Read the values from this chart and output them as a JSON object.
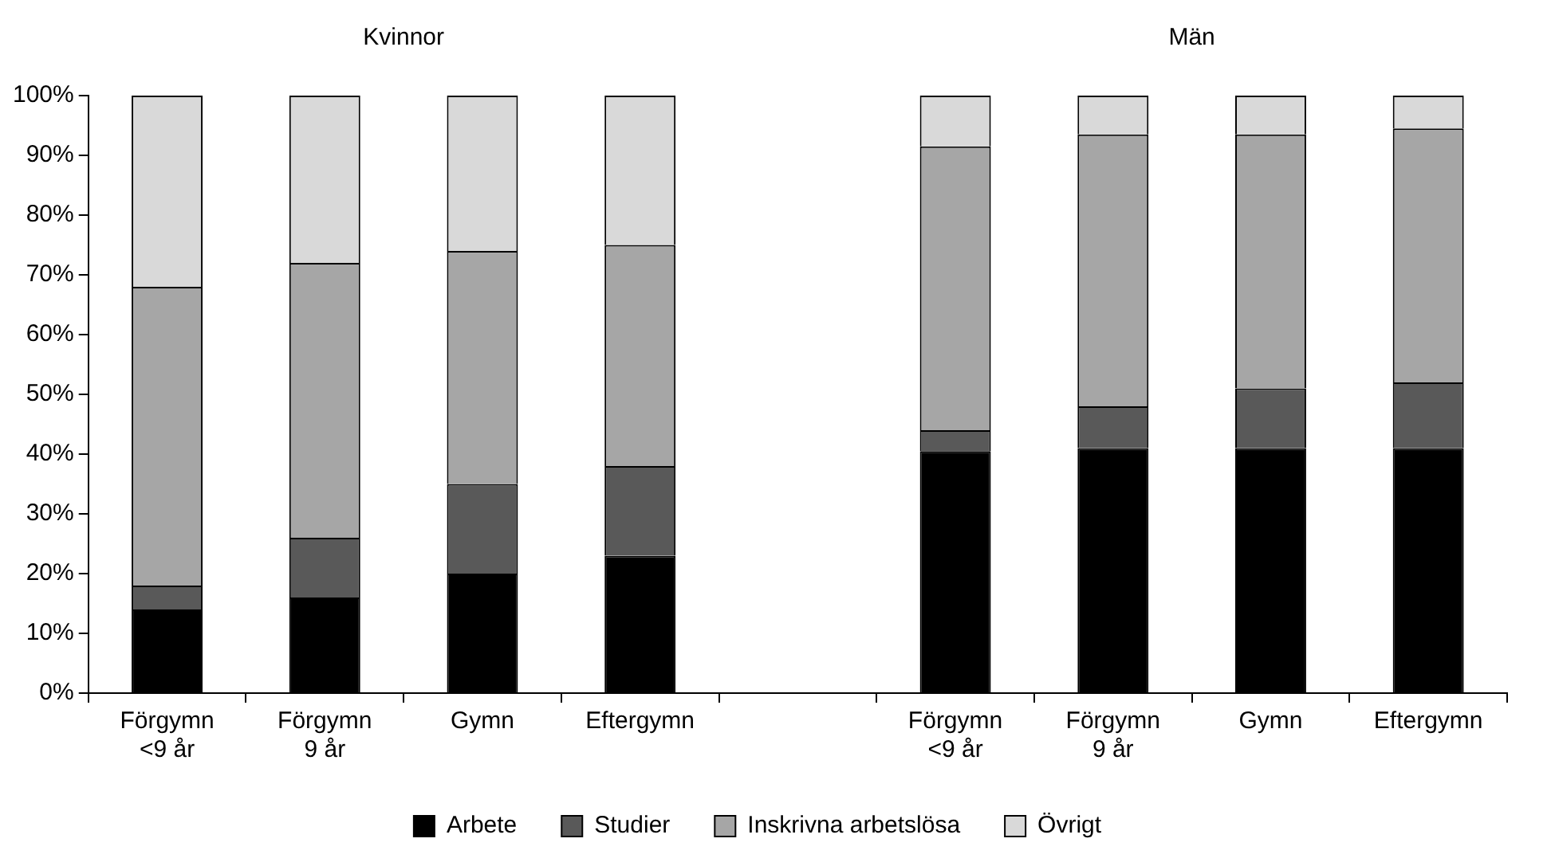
{
  "chart_data": {
    "type": "bar",
    "stacked": true,
    "legend": "bottom",
    "categories": [
      "Förgymn\n<9 år",
      "Förgymn\n9 år",
      "Gymn",
      "Eftergymn",
      null,
      "Förgymn\n<9 år",
      "Förgymn\n9 år",
      "Gymn",
      "Eftergymn"
    ],
    "annotations": [
      "Kvinnor",
      "Män"
    ],
    "ylim": [
      0,
      100
    ],
    "yticks": [
      {
        "value": 0,
        "label": "0%"
      },
      {
        "value": 10,
        "label": "10%"
      },
      {
        "value": 20,
        "label": "20%"
      },
      {
        "value": 30,
        "label": "30%"
      },
      {
        "value": 40,
        "label": "40%"
      },
      {
        "value": 50,
        "label": "50%"
      },
      {
        "value": 60,
        "label": "60%"
      },
      {
        "value": 70,
        "label": "70%"
      },
      {
        "value": 80,
        "label": "80%"
      },
      {
        "value": 90,
        "label": "90%"
      },
      {
        "value": 100,
        "label": "100%"
      }
    ],
    "series": [
      {
        "name": "Arbete",
        "color": "#000000",
        "values": [
          14,
          16,
          20,
          23,
          null,
          40.5,
          41,
          41,
          41
        ]
      },
      {
        "name": "Studier",
        "color": "#595959",
        "values": [
          4,
          10,
          15,
          15,
          null,
          3.5,
          7,
          10,
          11
        ]
      },
      {
        "name": "Inskrivna arbetslösa",
        "color": "#a6a6a6",
        "values": [
          50,
          46,
          39,
          37,
          null,
          47.5,
          45.5,
          42.5,
          42.5
        ]
      },
      {
        "name": "Övrigt",
        "color": "#d9d9d9",
        "values": [
          32,
          28,
          26,
          25,
          null,
          8.5,
          6.5,
          6.5,
          5.5
        ]
      }
    ]
  }
}
